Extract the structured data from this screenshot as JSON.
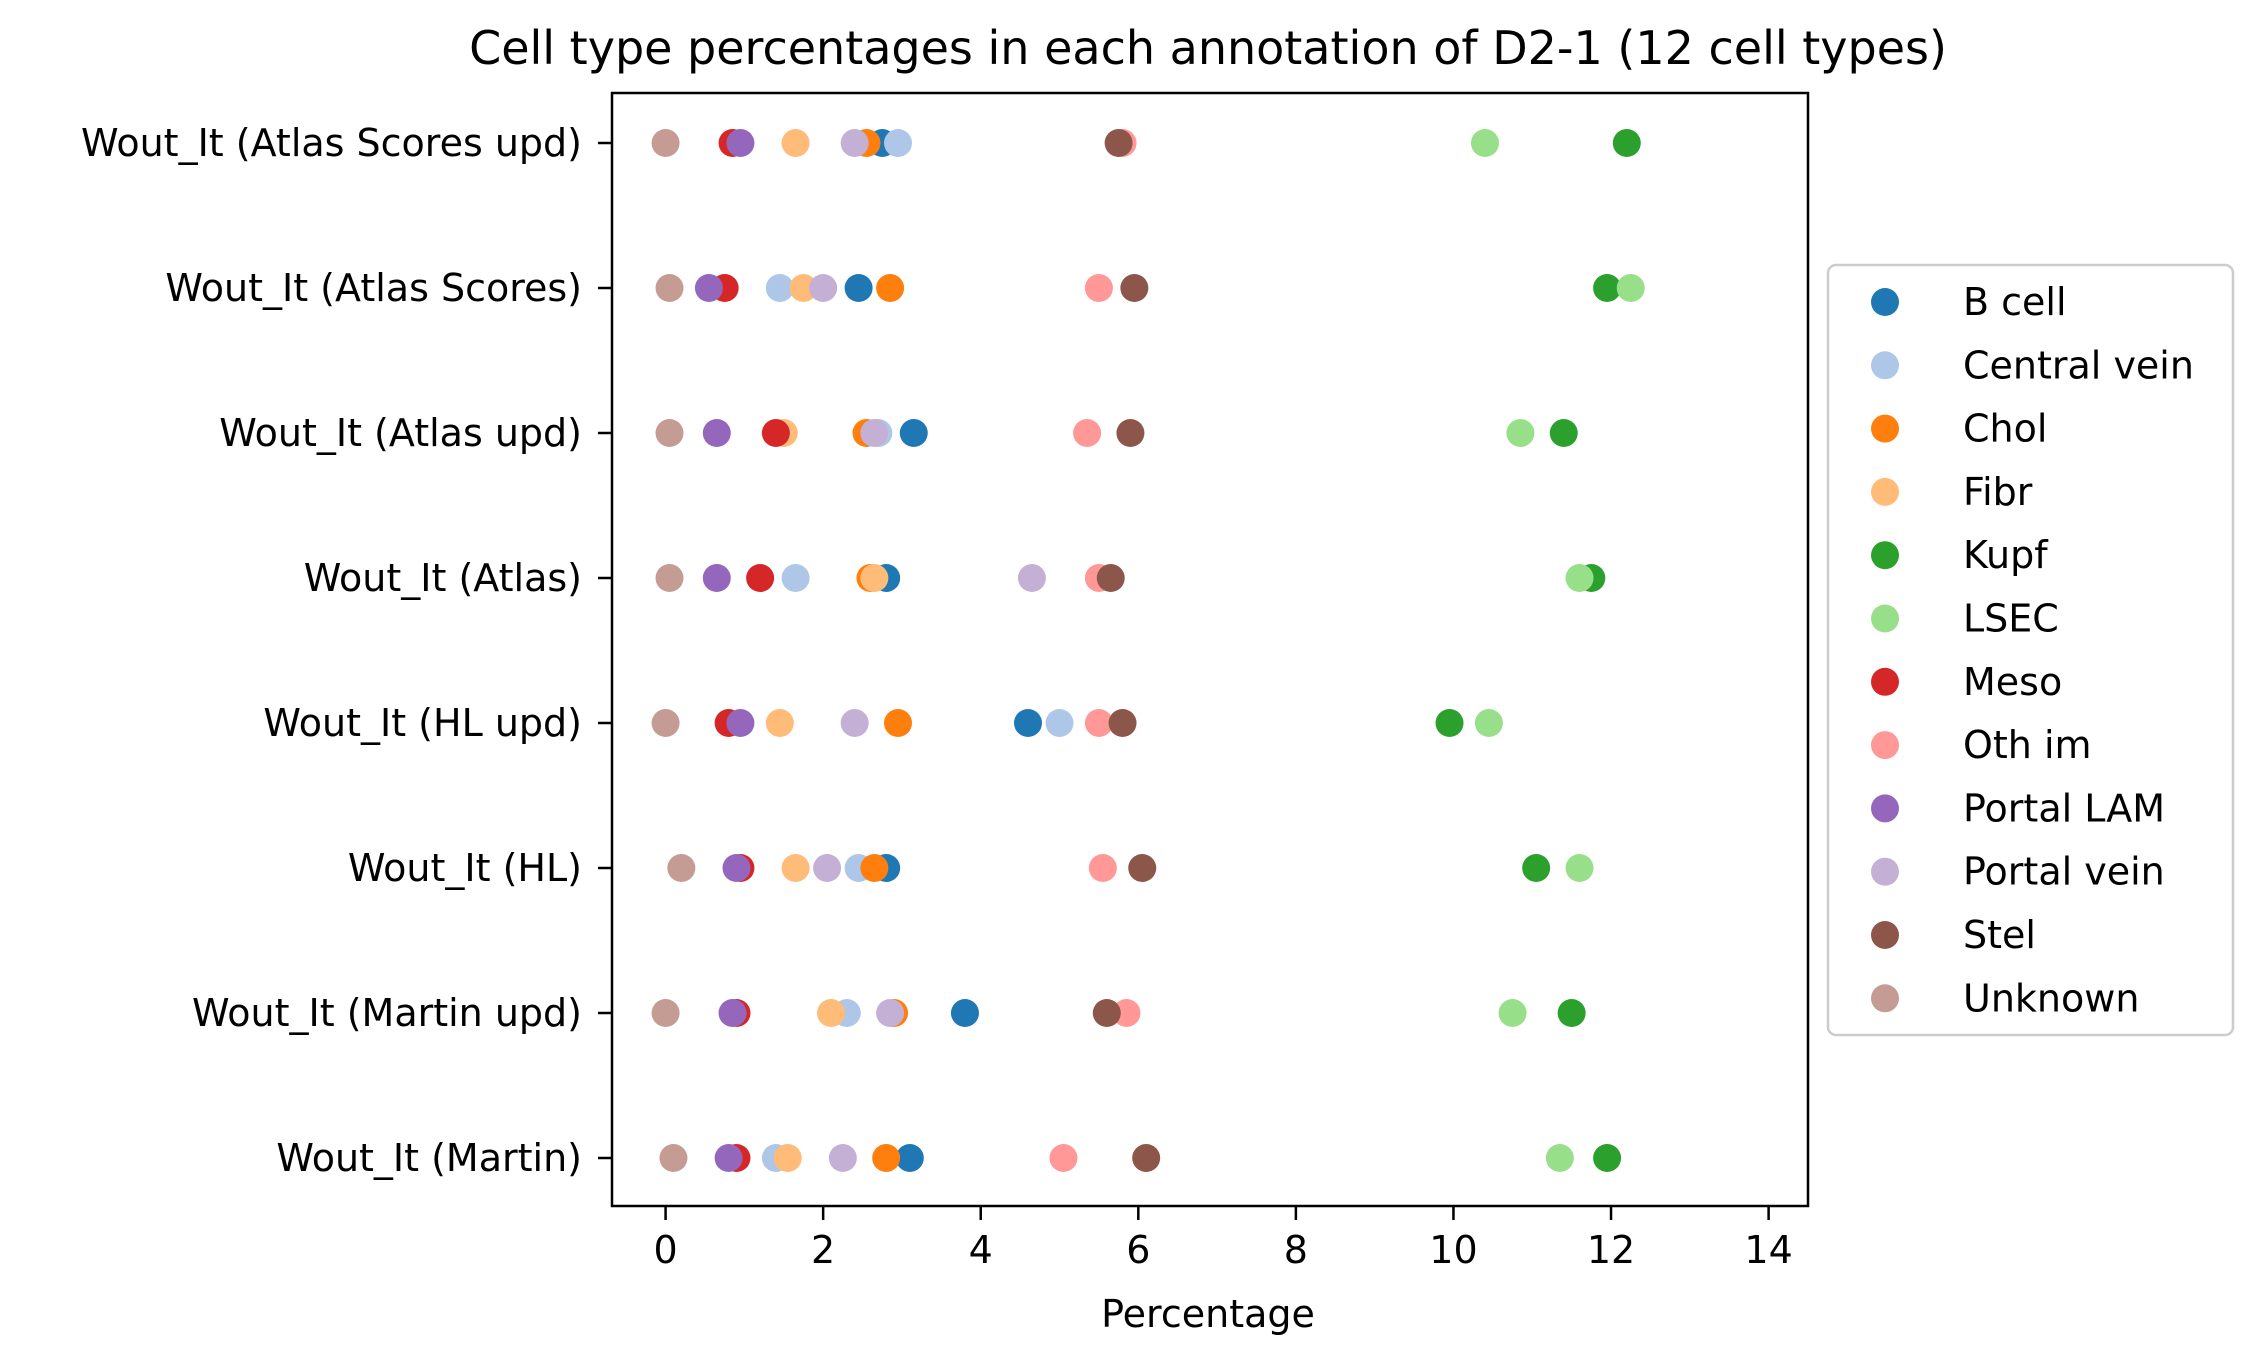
{
  "chart_data": {
    "type": "scatter",
    "title": "Cell type percentages in each annotation of D2-1 (12 cell types)",
    "xlabel": "Percentage",
    "ylabel": "",
    "xlim": [
      -0.68,
      14.5
    ],
    "xticks": [
      0,
      2,
      4,
      6,
      8,
      10,
      12,
      14
    ],
    "categories": [
      "Wout_It (Atlas Scores upd)",
      "Wout_It (Atlas Scores)",
      "Wout_It (Atlas upd)",
      "Wout_It (Atlas)",
      "Wout_It (HL upd)",
      "Wout_It (HL)",
      "Wout_It (Martin upd)",
      "Wout_It (Martin)"
    ],
    "grid": false,
    "legend_position": "right",
    "series": [
      {
        "name": "B cell",
        "color": "#1f77b4",
        "values": [
          2.75,
          2.45,
          3.15,
          2.8,
          4.6,
          2.8,
          3.8,
          3.1
        ]
      },
      {
        "name": "Central vein",
        "color": "#aec7e8",
        "values": [
          2.95,
          1.45,
          2.7,
          1.65,
          5.0,
          2.45,
          2.3,
          1.4
        ]
      },
      {
        "name": "Chol",
        "color": "#ff7f0e",
        "values": [
          2.55,
          2.85,
          2.55,
          2.6,
          2.95,
          2.65,
          2.9,
          2.8
        ]
      },
      {
        "name": "Fibr",
        "color": "#ffbb78",
        "values": [
          1.65,
          1.75,
          1.5,
          2.65,
          1.45,
          1.65,
          2.1,
          1.55
        ]
      },
      {
        "name": "Kupf",
        "color": "#2ca02c",
        "values": [
          12.2,
          11.95,
          11.4,
          11.75,
          9.95,
          11.05,
          11.5,
          11.95
        ]
      },
      {
        "name": "LSEC",
        "color": "#98df8a",
        "values": [
          10.4,
          12.25,
          10.85,
          11.6,
          10.45,
          11.6,
          10.75,
          11.35
        ]
      },
      {
        "name": "Meso",
        "color": "#d62728",
        "values": [
          0.85,
          0.75,
          1.4,
          1.2,
          0.8,
          0.95,
          0.9,
          0.9
        ]
      },
      {
        "name": "Oth im",
        "color": "#ff9896",
        "values": [
          5.8,
          5.5,
          5.35,
          5.5,
          5.5,
          5.55,
          5.85,
          5.05
        ]
      },
      {
        "name": "Portal LAM",
        "color": "#9467bd",
        "values": [
          0.95,
          0.55,
          0.65,
          0.65,
          0.95,
          0.9,
          0.85,
          0.8
        ]
      },
      {
        "name": "Portal vein",
        "color": "#c5b0d5",
        "values": [
          2.4,
          2.0,
          2.65,
          4.65,
          2.4,
          2.05,
          2.85,
          2.25
        ]
      },
      {
        "name": "Stel",
        "color": "#8c564b",
        "values": [
          5.75,
          5.95,
          5.9,
          5.65,
          5.8,
          6.05,
          5.6,
          6.1
        ]
      },
      {
        "name": "Unknown",
        "color": "#c49c94",
        "values": [
          0.0,
          0.05,
          0.05,
          0.05,
          0.0,
          0.2,
          0.0,
          0.1
        ]
      }
    ]
  }
}
